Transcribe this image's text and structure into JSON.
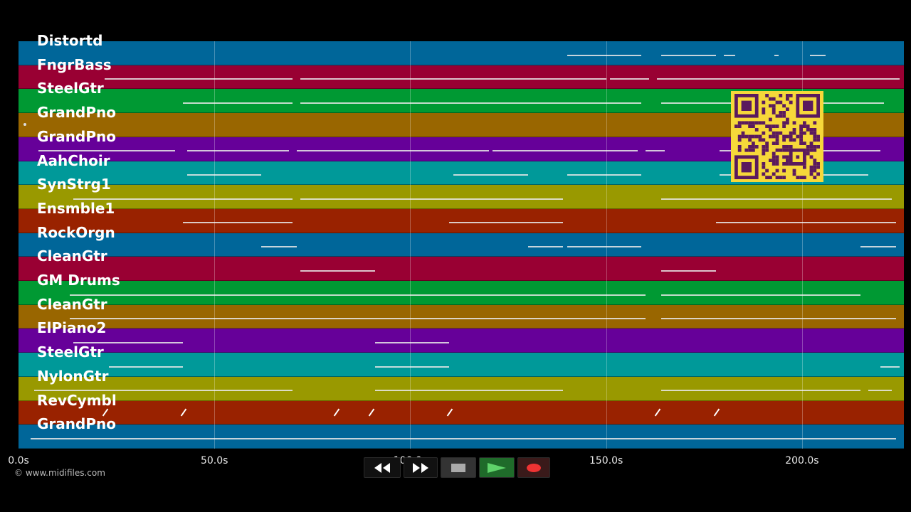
{
  "lanes": [
    {
      "label": "Distortd",
      "color": "#006699"
    },
    {
      "label": "FngrBass",
      "color": "#990033"
    },
    {
      "label": "SteelGtr",
      "color": "#009933"
    },
    {
      "label": "GrandPno",
      "color": "#996600"
    },
    {
      "label": "GrandPno",
      "color": "#660099"
    },
    {
      "label": "AahChoir",
      "color": "#009999"
    },
    {
      "label": "SynStrg1",
      "color": "#999900"
    },
    {
      "label": "Ensmble1",
      "color": "#992200"
    },
    {
      "label": "RockOrgn",
      "color": "#006699"
    },
    {
      "label": "CleanGtr",
      "color": "#990033"
    },
    {
      "label": "GM Drums",
      "color": "#009933"
    },
    {
      "label": "CleanGtr",
      "color": "#996600"
    },
    {
      "label": "ElPiano2",
      "color": "#660099"
    },
    {
      "label": "SteelGtr",
      "color": "#009999"
    },
    {
      "label": "NylonGtr",
      "color": "#999900"
    },
    {
      "label": "RevCymbl",
      "color": "#992200"
    },
    {
      "label": "GrandPno",
      "color": "#006699"
    }
  ],
  "timeline": {
    "max_seconds": 226,
    "ticks": [
      {
        "value": 0,
        "label": "0.0s"
      },
      {
        "value": 50,
        "label": "50.0s"
      },
      {
        "value": 100,
        "label": "100.0s"
      },
      {
        "value": 150,
        "label": "150.0s"
      },
      {
        "value": 200,
        "label": "200.0s"
      }
    ]
  },
  "notes": [
    [
      [
        140,
        159
      ],
      [
        164,
        178
      ],
      [
        180,
        183
      ],
      [
        193,
        194
      ],
      [
        202,
        206
      ]
    ],
    [
      [
        22,
        70
      ],
      [
        72,
        150
      ],
      [
        151,
        161
      ],
      [
        163,
        225
      ]
    ],
    [
      [
        42,
        70
      ],
      [
        72,
        159
      ],
      [
        164,
        185
      ],
      [
        190,
        221
      ]
    ],
    [],
    [
      [
        5,
        40
      ],
      [
        43,
        69
      ],
      [
        71,
        120
      ],
      [
        121,
        158
      ],
      [
        160,
        165
      ],
      [
        179,
        220
      ]
    ],
    [
      [
        43,
        62
      ],
      [
        111,
        130
      ],
      [
        140,
        159
      ],
      [
        179,
        217
      ]
    ],
    [
      [
        14,
        70
      ],
      [
        72,
        139
      ],
      [
        164,
        223
      ]
    ],
    [
      [
        42,
        70
      ],
      [
        110,
        139
      ],
      [
        178,
        224
      ]
    ],
    [
      [
        62,
        71
      ],
      [
        130,
        139
      ],
      [
        140,
        159
      ],
      [
        215,
        224
      ]
    ],
    [
      [
        72,
        91
      ],
      [
        164,
        178
      ]
    ],
    [
      [
        13,
        160
      ],
      [
        164,
        215
      ]
    ],
    [
      [
        13,
        160
      ],
      [
        164,
        224
      ]
    ],
    [
      [
        14,
        42
      ],
      [
        91,
        110
      ]
    ],
    [
      [
        23,
        42
      ],
      [
        91,
        110
      ],
      [
        220,
        225
      ]
    ],
    [
      [
        4,
        70
      ],
      [
        91,
        139
      ],
      [
        164,
        215
      ],
      [
        217,
        223
      ]
    ],
    [],
    [
      [
        3,
        224
      ]
    ]
  ],
  "marks": [
    [
      15,
      22
    ],
    [
      15,
      42
    ],
    [
      15,
      81
    ],
    [
      15,
      90
    ],
    [
      15,
      110
    ],
    [
      15,
      163
    ],
    [
      15,
      178
    ]
  ],
  "copyright": "© www.midifiles.com",
  "transport": {
    "rewind_icon": "rewind-icon",
    "forward_icon": "fast-forward-icon",
    "stop_icon": "stop-icon",
    "play_icon": "play-icon",
    "record_icon": "record-icon"
  }
}
